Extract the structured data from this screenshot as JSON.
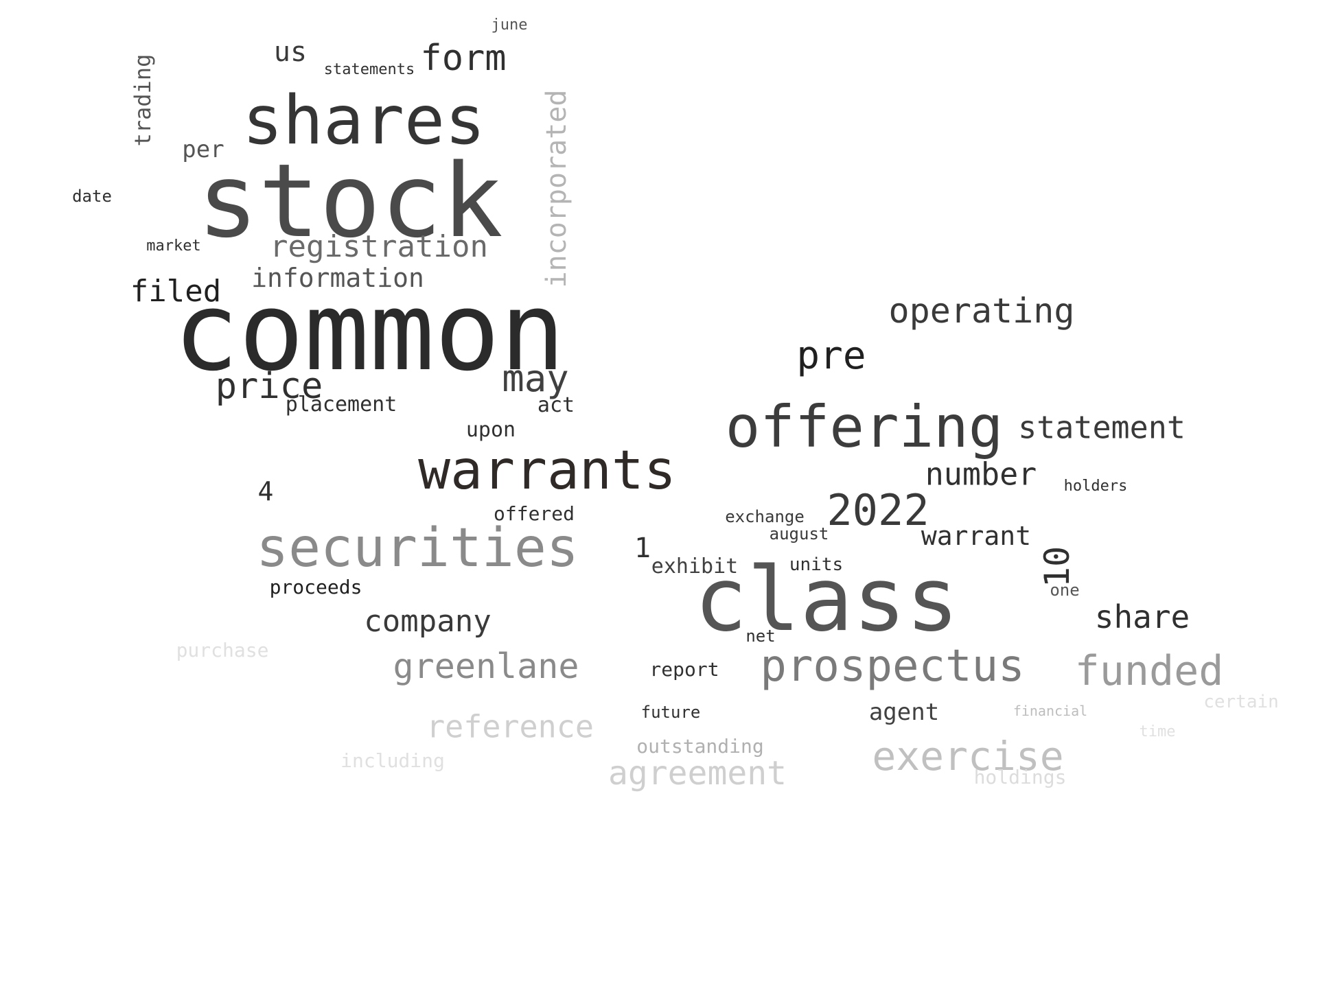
{
  "image": {
    "type": "word-cloud",
    "background": "#ffffff"
  },
  "words": [
    {
      "text": "common",
      "size": 3,
      "color": "#2b2b2b"
    },
    {
      "text": "stock",
      "size": 3,
      "color": "#4a4a4a"
    },
    {
      "text": "shares",
      "size": 3,
      "color": "#353535"
    },
    {
      "text": "class",
      "size": 3,
      "color": "#555555"
    },
    {
      "text": "offering",
      "size": 3,
      "color": "#3c3c3c"
    },
    {
      "text": "warrants",
      "size": 3,
      "color": "#2f2a28"
    },
    {
      "text": "securities",
      "size": 3,
      "color": "#8a8a8a"
    },
    {
      "text": "prospectus",
      "size": 2,
      "color": "#7a7a7a"
    },
    {
      "text": "may",
      "size": 2,
      "color": "#404040"
    },
    {
      "text": "pre",
      "size": 2,
      "color": "#202020"
    },
    {
      "text": "2022",
      "size": 2,
      "color": "#3a3a3a"
    },
    {
      "text": "operating",
      "size": 2,
      "color": "#3a3a3a"
    },
    {
      "text": "statement",
      "size": 2,
      "color": "#3a3a3a"
    },
    {
      "text": "registration",
      "size": 2,
      "color": "#6a6a6a"
    },
    {
      "text": "form",
      "size": 2,
      "color": "#303030"
    },
    {
      "text": "filed",
      "size": 2,
      "color": "#202020"
    },
    {
      "text": "price",
      "size": 2,
      "color": "#303030"
    },
    {
      "text": "information",
      "size": 2,
      "color": "#555555"
    },
    {
      "text": "number",
      "size": 2,
      "color": "#303030"
    },
    {
      "text": "company",
      "size": 2,
      "color": "#3a3a3a"
    },
    {
      "text": "greenlane",
      "size": 2,
      "color": "#8a8a8a"
    },
    {
      "text": "funded",
      "size": 2,
      "color": "#9a9a9a"
    },
    {
      "text": "exercise",
      "size": 2,
      "color": "#c0c0c0"
    },
    {
      "text": "reference",
      "size": 2,
      "color": "#cfcfcf"
    },
    {
      "text": "agreement",
      "size": 2,
      "color": "#cfcfcf"
    },
    {
      "text": "share",
      "size": 2,
      "color": "#303030"
    },
    {
      "text": "warrant",
      "size": 2,
      "color": "#303030"
    },
    {
      "text": "incorporated",
      "size": 2,
      "color": "#b4b4b4"
    },
    {
      "text": "us",
      "size": 2,
      "color": "#3a3a3a"
    },
    {
      "text": "10",
      "size": 2,
      "color": "#303030"
    },
    {
      "text": "trading",
      "size": 1,
      "color": "#555555"
    },
    {
      "text": "statements",
      "size": 1,
      "color": "#303030"
    },
    {
      "text": "june",
      "size": 1,
      "color": "#555555"
    },
    {
      "text": "placement",
      "size": 1,
      "color": "#303030"
    },
    {
      "text": "act",
      "size": 1,
      "color": "#303030"
    },
    {
      "text": "upon",
      "size": 1,
      "color": "#303030"
    },
    {
      "text": "offered",
      "size": 1,
      "color": "#303030"
    },
    {
      "text": "exhibit",
      "size": 1,
      "color": "#404040"
    },
    {
      "text": "units",
      "size": 1,
      "color": "#303030"
    },
    {
      "text": "exchange",
      "size": 1,
      "color": "#3a3a3a"
    },
    {
      "text": "august",
      "size": 1,
      "color": "#3a3a3a"
    },
    {
      "text": "holders",
      "size": 1,
      "color": "#303030"
    },
    {
      "text": "agent",
      "size": 1,
      "color": "#404040"
    },
    {
      "text": "report",
      "size": 1,
      "color": "#303030"
    },
    {
      "text": "proceeds",
      "size": 1,
      "color": "#202020"
    },
    {
      "text": "future",
      "size": 1,
      "color": "#303030"
    },
    {
      "text": "outstanding",
      "size": 1,
      "color": "#b0b0b0"
    },
    {
      "text": "per",
      "size": 1,
      "color": "#555555"
    },
    {
      "text": "date",
      "size": 1,
      "color": "#303030"
    },
    {
      "text": "market",
      "size": 1,
      "color": "#303030"
    },
    {
      "text": "net",
      "size": 1,
      "color": "#303030"
    },
    {
      "text": "one",
      "size": 1,
      "color": "#555555"
    },
    {
      "text": "including",
      "size": 1,
      "color": "#e0e0e0"
    },
    {
      "text": "purchase",
      "size": 1,
      "color": "#e0e0e0"
    },
    {
      "text": "holdings",
      "size": 1,
      "color": "#dcdcdc"
    },
    {
      "text": "certain",
      "size": 1,
      "color": "#e0e0e0"
    },
    {
      "text": "financial",
      "size": 1,
      "color": "#bdbdbd"
    },
    {
      "text": "4",
      "size": 1,
      "color": "#303030"
    },
    {
      "text": "1",
      "size": 1,
      "color": "#303030"
    },
    {
      "text": "time",
      "size": 1,
      "color": "#e0e0e0"
    }
  ]
}
